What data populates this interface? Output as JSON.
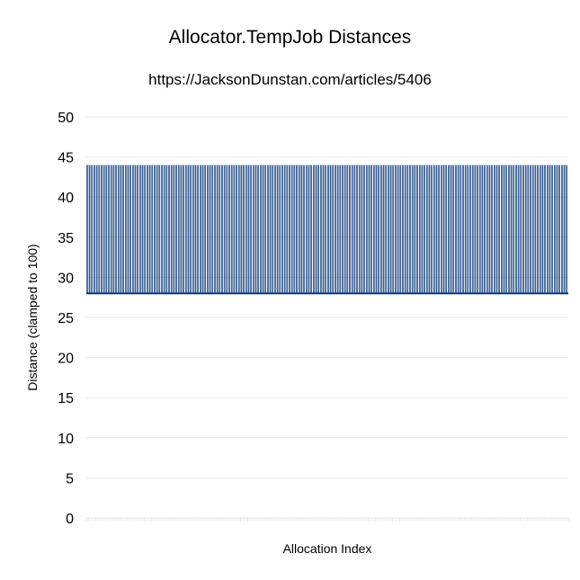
{
  "chart_data": {
    "type": "bar",
    "title": "Allocator.TempJob Distances",
    "subtitle": "https://JacksonDunstan.com/articles/5406",
    "xlabel": "Allocation Index",
    "ylabel": "Distance (clamped to 100)",
    "ylim": [
      0,
      50
    ],
    "yticks": [
      "0",
      "5",
      "10",
      "15",
      "20",
      "25",
      "30",
      "35",
      "40",
      "45",
      "50"
    ],
    "grid": true,
    "legend": "none",
    "bar_color": "#0d3a7a",
    "series": [
      {
        "pattern": [
          44,
          44,
          28
        ],
        "repeat_count": 200
      }
    ]
  }
}
